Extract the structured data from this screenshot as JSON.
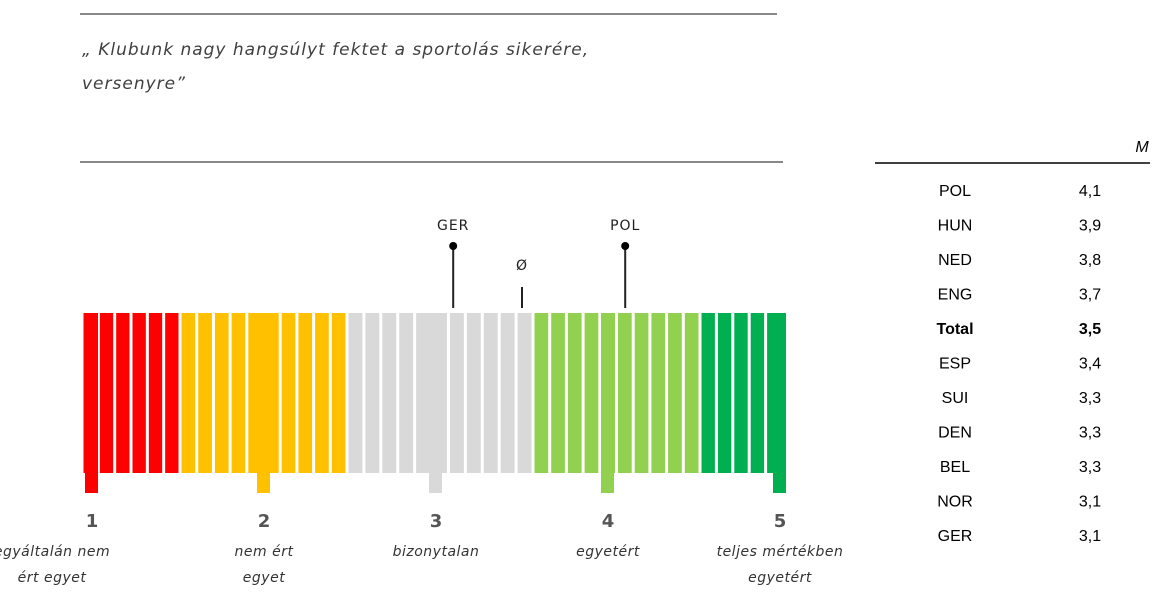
{
  "quote": [
    "„ Klubunk nagy hangsúlyt fektet a sportolás sikerére,",
    "versenyre”"
  ],
  "scale": {
    "ticks": [
      1,
      2,
      3,
      4,
      5
    ],
    "labels": [
      [
        "egyáltalán nem",
        "ért egyet"
      ],
      [
        "nem ért",
        "egyet"
      ],
      [
        "bizonytalan"
      ],
      [
        "egyetért"
      ],
      [
        "teljes mértékben",
        "egyetért"
      ]
    ],
    "markers": [
      {
        "label": "GER",
        "value": 3.1,
        "dot": true
      },
      {
        "label": "Ø",
        "value": 3.5,
        "dot": false
      },
      {
        "label": "POL",
        "value": 4.1,
        "dot": true
      }
    ]
  },
  "table": {
    "header": "M",
    "rows": [
      [
        "POL",
        "4,1"
      ],
      [
        "HUN",
        "3,9"
      ],
      [
        "NED",
        "3,8"
      ],
      [
        "ENG",
        "3,7"
      ],
      [
        "Total",
        "3,5"
      ],
      [
        "ESP",
        "3,4"
      ],
      [
        "SUI",
        "3,3"
      ],
      [
        "DEN",
        "3,3"
      ],
      [
        "BEL",
        "3,3"
      ],
      [
        "NOR",
        "3,1"
      ],
      [
        "GER",
        "3,1"
      ]
    ],
    "bold_row": 4
  }
}
